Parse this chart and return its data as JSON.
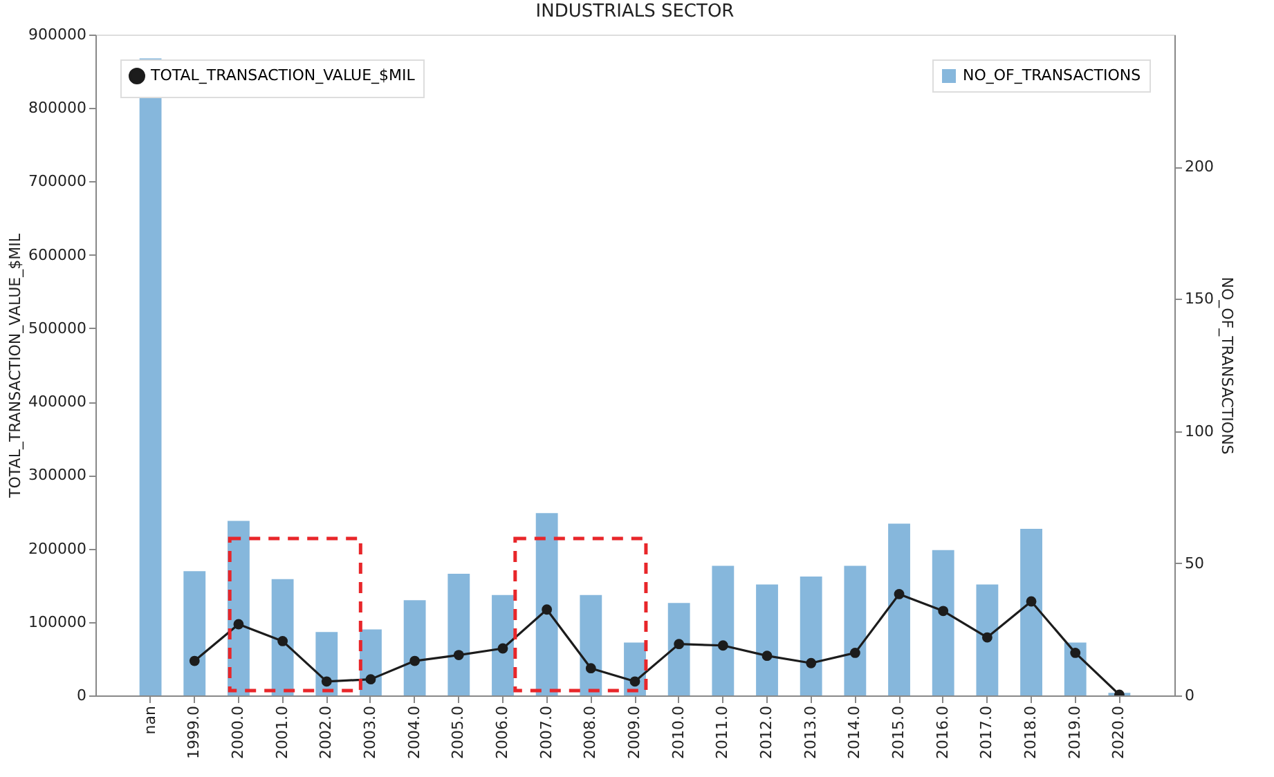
{
  "chart_data": {
    "type": "bar",
    "title": "INDUSTRIALS SECTOR",
    "ylabel": "TOTAL_TRANSACTION_VALUE_$MIL",
    "y2label": "NO_OF_TRANSACTIONS",
    "categories": [
      "nan",
      "1999.0",
      "2000.0",
      "2001.0",
      "2002.0",
      "2003.0",
      "2004.0",
      "2005.0",
      "2006.0",
      "2007.0",
      "2008.0",
      "2009.0",
      "2010.0",
      "2011.0",
      "2012.0",
      "2013.0",
      "2014.0",
      "2015.0",
      "2016.0",
      "2017.0",
      "2018.0",
      "2019.0",
      "2020.0"
    ],
    "series": [
      {
        "name": "NO_OF_TRANSACTIONS",
        "axis": "y2",
        "color": "#86b7dc",
        "values": [
          241,
          47,
          66,
          44,
          24,
          25,
          36,
          46,
          38,
          69,
          38,
          20,
          35,
          49,
          42,
          45,
          49,
          65,
          55,
          42,
          63,
          20,
          1
        ]
      },
      {
        "name": "TOTAL_TRANSACTION_VALUE_$MIL",
        "type": "line",
        "axis": "y",
        "color": "#1c1c1c",
        "marker": "circle",
        "line_style": "solid",
        "values": [
          null,
          47000,
          97000,
          74000,
          19000,
          22000,
          47000,
          55000,
          64000,
          117000,
          37000,
          19000,
          70000,
          68000,
          54000,
          44000,
          58000,
          138000,
          115000,
          79000,
          128000,
          58000,
          1000
        ]
      }
    ],
    "ylim": [
      0,
      900000
    ],
    "yticks": [
      0,
      100000,
      200000,
      300000,
      400000,
      500000,
      600000,
      700000,
      800000,
      900000
    ],
    "y2lim": [
      0,
      250
    ],
    "y2ticks": [
      0,
      50,
      100,
      150,
      200
    ],
    "grid": false,
    "legend": "top"
  }
}
